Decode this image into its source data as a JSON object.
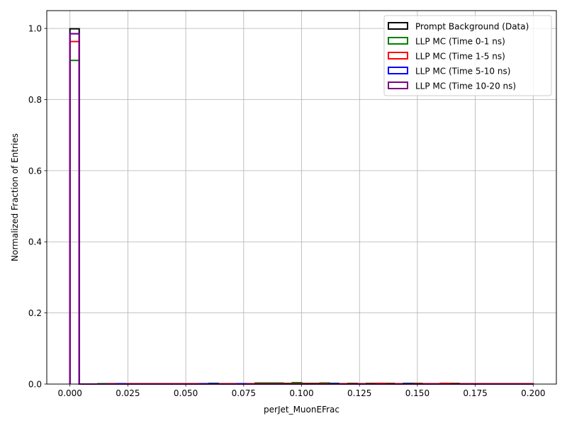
{
  "chart_data": {
    "type": "histogram",
    "xlabel": "perJet_MuonEFrac",
    "ylabel": "Normalized Fraction of Entries",
    "xlim": [
      -0.01,
      0.21
    ],
    "ylim": [
      0,
      1.05
    ],
    "xticks": [
      0.0,
      0.025,
      0.05,
      0.075,
      0.1,
      0.125,
      0.15,
      0.175,
      0.2
    ],
    "xtick_labels": [
      "0.000",
      "0.025",
      "0.050",
      "0.075",
      "0.100",
      "0.125",
      "0.150",
      "0.175",
      "0.200"
    ],
    "yticks": [
      0.0,
      0.2,
      0.4,
      0.6,
      0.8,
      1.0
    ],
    "ytick_labels": [
      "0.0",
      "0.2",
      "0.4",
      "0.6",
      "0.8",
      "1.0"
    ],
    "grid": true,
    "legend_position": "top-right",
    "bin_edges": [
      0.0,
      0.004,
      0.008,
      0.012,
      0.016,
      0.02,
      0.024,
      0.028,
      0.032,
      0.036,
      0.04,
      0.044,
      0.048,
      0.052,
      0.056,
      0.06,
      0.064,
      0.068,
      0.072,
      0.076,
      0.08,
      0.084,
      0.088,
      0.092,
      0.096,
      0.1,
      0.104,
      0.108,
      0.112,
      0.116,
      0.12,
      0.124,
      0.128,
      0.132,
      0.136,
      0.14,
      0.144,
      0.148,
      0.152,
      0.156,
      0.16,
      0.164,
      0.168,
      0.172,
      0.176,
      0.18,
      0.184,
      0.188,
      0.192,
      0.196,
      0.2
    ],
    "series": [
      {
        "name": "Prompt Background (Data)",
        "color": "#000000",
        "values": [
          0.999,
          0.0,
          0.0,
          0.0,
          0.0,
          0.0,
          0.0,
          0.0,
          0.0,
          0.0,
          0.0,
          0.0,
          0.0,
          0.0,
          0.0,
          0.0,
          0.0,
          0.0,
          0.0,
          0.0,
          0.0,
          0.0,
          0.0,
          0.0,
          0.0,
          0.0,
          0.0,
          0.0,
          0.0,
          0.0,
          0.0,
          0.0,
          0.0,
          0.0,
          0.0,
          0.0,
          0.0,
          0.0,
          0.0,
          0.0,
          0.0,
          0.0,
          0.0,
          0.0,
          0.0,
          0.0,
          0.0,
          0.0,
          0.0,
          0.0
        ]
      },
      {
        "name": "LLP MC (Time 0-1 ns)",
        "color": "#008000",
        "values": [
          0.91,
          0.0,
          0.0,
          0.001,
          0.001,
          0.001,
          0.001,
          0.001,
          0.001,
          0.001,
          0.001,
          0.001,
          0.001,
          0.001,
          0.001,
          0.002,
          0.001,
          0.001,
          0.001,
          0.001,
          0.003,
          0.003,
          0.003,
          0.002,
          0.004,
          0.002,
          0.002,
          0.003,
          0.002,
          0.001,
          0.002,
          0.001,
          0.002,
          0.002,
          0.002,
          0.001,
          0.002,
          0.002,
          0.001,
          0.001,
          0.002,
          0.002,
          0.001,
          0.001,
          0.001,
          0.001,
          0.001,
          0.001,
          0.001,
          0.001
        ]
      },
      {
        "name": "LLP MC (Time 1-5 ns)",
        "color": "#ff0000",
        "values": [
          0.963,
          0.0,
          0.0,
          0.0,
          0.001,
          0.001,
          0.001,
          0.001,
          0.001,
          0.001,
          0.001,
          0.001,
          0.001,
          0.001,
          0.001,
          0.001,
          0.001,
          0.001,
          0.001,
          0.001,
          0.001,
          0.001,
          0.001,
          0.001,
          0.001,
          0.001,
          0.001,
          0.001,
          0.001,
          0.001,
          0.001,
          0.001,
          0.001,
          0.002,
          0.001,
          0.001,
          0.001,
          0.001,
          0.001,
          0.001,
          0.002,
          0.001,
          0.001,
          0.001,
          0.001,
          0.001,
          0.001,
          0.001,
          0.001,
          0.001
        ]
      },
      {
        "name": "LLP MC (Time 5-10 ns)",
        "color": "#0000ff",
        "values": [
          0.985,
          0.0,
          0.0,
          0.0,
          0.0,
          0.001,
          0.0,
          0.0,
          0.0,
          0.0,
          0.0,
          0.0,
          0.0,
          0.0,
          0.001,
          0.001,
          0.0,
          0.0,
          0.001,
          0.0,
          0.0,
          0.0,
          0.0,
          0.0,
          0.0,
          0.0,
          0.0,
          0.0,
          0.001,
          0.0,
          0.0,
          0.0,
          0.0,
          0.0,
          0.0,
          0.0,
          0.001,
          0.0,
          0.0,
          0.0,
          0.0,
          0.0,
          0.0,
          0.0,
          0.0,
          0.0,
          0.0,
          0.0,
          0.0,
          0.0
        ]
      },
      {
        "name": "LLP MC (Time 10-20 ns)",
        "color": "#800080",
        "values": [
          0.985,
          0.0,
          0.0,
          0.0,
          0.0,
          0.0,
          0.0,
          0.0,
          0.0,
          0.0,
          0.0,
          0.0,
          0.0,
          0.0,
          0.0,
          0.0,
          0.0,
          0.0,
          0.0,
          0.0,
          0.0,
          0.0,
          0.0,
          0.0,
          0.0,
          0.0,
          0.0,
          0.0,
          0.0,
          0.0,
          0.0,
          0.0,
          0.0,
          0.0,
          0.0,
          0.0,
          0.0,
          0.0,
          0.0,
          0.0,
          0.0,
          0.0,
          0.0,
          0.0,
          0.0,
          0.0,
          0.0,
          0.0,
          0.0,
          0.0
        ]
      }
    ]
  }
}
